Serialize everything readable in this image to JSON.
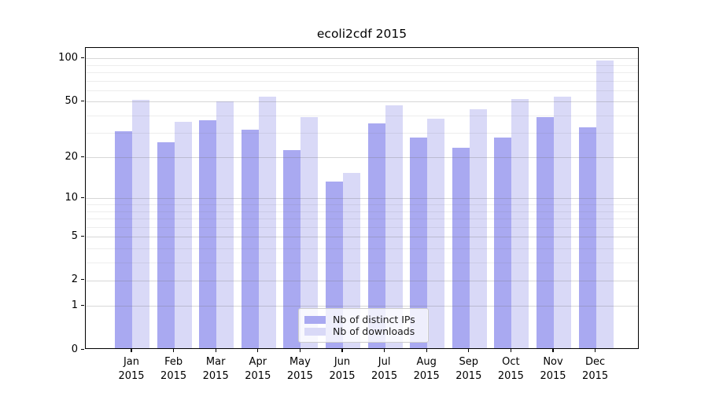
{
  "title": "ecoli2cdf 2015",
  "chart_data": {
    "type": "bar",
    "categories": [
      "Jan 2015",
      "Feb 2015",
      "Mar 2015",
      "Apr 2015",
      "May 2015",
      "Jun 2015",
      "Jul 2015",
      "Aug 2015",
      "Sep 2015",
      "Oct 2015",
      "Nov 2015",
      "Dec 2015"
    ],
    "x_tick_months": [
      "Jan",
      "Feb",
      "Mar",
      "Apr",
      "May",
      "Jun",
      "Jul",
      "Aug",
      "Sep",
      "Oct",
      "Nov",
      "Dec"
    ],
    "x_tick_year": "2015",
    "series": [
      {
        "name": "Nb of distinct IPs",
        "color": "#a9a9f1",
        "values": [
          30,
          25,
          36,
          31,
          22,
          13,
          34,
          27,
          23,
          27,
          38,
          32
        ]
      },
      {
        "name": "Nb of downloads",
        "color": "#d9d9f7",
        "values": [
          50,
          35,
          49,
          53,
          38,
          15,
          46,
          37,
          43,
          51,
          53,
          94
        ]
      }
    ],
    "yscale": "log1p",
    "ylabel": "",
    "xlabel": "",
    "y_ticks": [
      0,
      1,
      2,
      5,
      10,
      20,
      50,
      100
    ],
    "y_minor_gridlines": [
      3,
      4,
      6,
      7,
      8,
      9,
      30,
      40,
      60,
      70,
      80,
      90
    ],
    "ylim": [
      0,
      110
    ],
    "grid": "on",
    "legend_position": "lower center"
  }
}
